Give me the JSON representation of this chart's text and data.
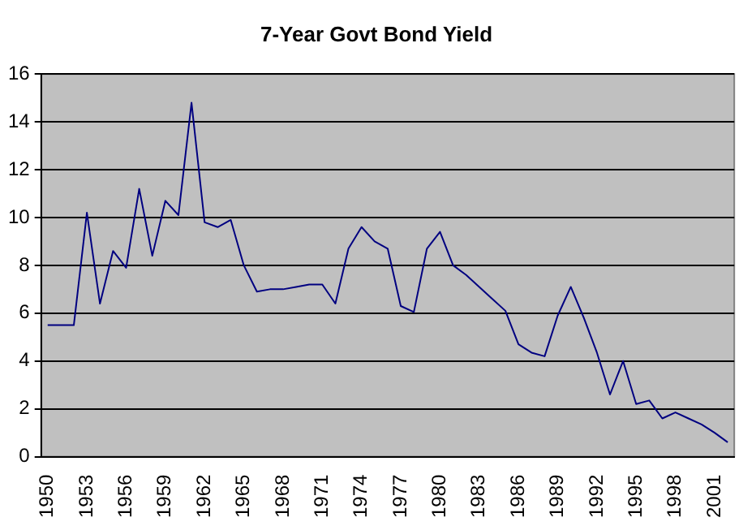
{
  "chart_data": {
    "type": "line",
    "title": "7-Year Govt Bond Yield",
    "categories": [
      "1950",
      null,
      null,
      "1953",
      null,
      null,
      "1956",
      null,
      null,
      "1959",
      null,
      null,
      "1962",
      null,
      null,
      "1965",
      null,
      null,
      "1968",
      null,
      null,
      "1971",
      null,
      null,
      "1974",
      null,
      null,
      "1977",
      null,
      null,
      "1980",
      null,
      null,
      "1983",
      null,
      null,
      "1986",
      null,
      null,
      "1989",
      null,
      null,
      "1992",
      null,
      null,
      "1995",
      null,
      null,
      "1998",
      null,
      null,
      "2001",
      null
    ],
    "series": [
      {
        "color": "#000080",
        "values": [
          5.5,
          5.5,
          5.5,
          10.2,
          6.4,
          8.6,
          7.9,
          11.2,
          8.4,
          10.7,
          10.1,
          14.8,
          9.8,
          9.6,
          9.9,
          8.0,
          6.9,
          7.0,
          7.0,
          7.1,
          7.2,
          7.2,
          6.4,
          8.7,
          9.6,
          9.0,
          8.7,
          6.3,
          6.05,
          8.7,
          9.4,
          8.0,
          7.6,
          7.1,
          6.6,
          6.1,
          4.7,
          4.35,
          4.2,
          5.9,
          7.1,
          5.8,
          4.35,
          2.6,
          4.0,
          2.2,
          2.35,
          1.6,
          1.85,
          1.6,
          1.35,
          1.0,
          0.6
        ]
      }
    ],
    "ylim": [
      0,
      16
    ],
    "yticks": [
      0,
      2,
      4,
      6,
      8,
      10,
      12,
      14,
      16
    ],
    "grid": "y",
    "legend": false,
    "marker": "none",
    "line_style": "solid"
  }
}
